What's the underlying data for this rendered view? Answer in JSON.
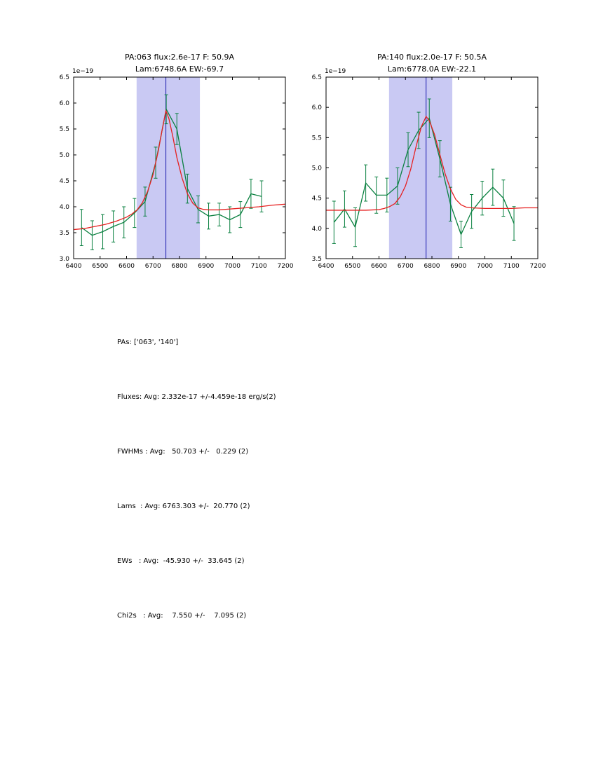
{
  "chart_data": [
    {
      "type": "line",
      "title": "PA:063 flux:2.6e-17 F: 50.9A",
      "subtitle": "Lam:6748.6A EW:-69.7",
      "offset_text": "1e−19",
      "xlim": [
        6400,
        7200
      ],
      "ylim": [
        3.0,
        6.5
      ],
      "xticks": [
        "6400",
        "6500",
        "6600",
        "6700",
        "6800",
        "6900",
        "7000",
        "7100",
        "7200"
      ],
      "yticks": [
        "3.0",
        "3.5",
        "4.0",
        "4.5",
        "5.0",
        "5.5",
        "6.0",
        "6.5"
      ],
      "band": {
        "x0": 6638,
        "x1": 6877,
        "color": "#c9c9f3"
      },
      "vline": {
        "x": 6748.6,
        "color": "#1a1aae"
      },
      "series": [
        {
          "name": "spectrum",
          "color": "#0a8040",
          "x": [
            6430,
            6470,
            6510,
            6550,
            6590,
            6630,
            6670,
            6710,
            6750,
            6790,
            6830,
            6870,
            6910,
            6950,
            6990,
            7030,
            7070,
            7110
          ],
          "y": [
            3.6,
            3.45,
            3.52,
            3.62,
            3.7,
            3.88,
            4.1,
            4.85,
            5.88,
            5.5,
            4.35,
            3.95,
            3.82,
            3.85,
            3.75,
            3.85,
            4.25,
            4.2
          ],
          "yerr": [
            0.35,
            0.28,
            0.33,
            0.3,
            0.3,
            0.28,
            0.28,
            0.3,
            0.28,
            0.3,
            0.28,
            0.26,
            0.25,
            0.22,
            0.25,
            0.25,
            0.28,
            0.3
          ]
        },
        {
          "name": "gaussian-fit",
          "color": "#e62020",
          "x": [
            6400,
            6440,
            6480,
            6520,
            6560,
            6600,
            6620,
            6640,
            6660,
            6680,
            6700,
            6720,
            6735,
            6748.6,
            6760,
            6775,
            6790,
            6810,
            6830,
            6850,
            6870,
            6890,
            6910,
            6950,
            7000,
            7050,
            7100,
            7150,
            7200
          ],
          "y": [
            3.56,
            3.58,
            3.62,
            3.66,
            3.72,
            3.8,
            3.86,
            3.94,
            4.08,
            4.3,
            4.62,
            5.08,
            5.5,
            5.85,
            5.7,
            5.35,
            4.95,
            4.55,
            4.25,
            4.07,
            3.98,
            3.95,
            3.94,
            3.94,
            3.96,
            3.98,
            4.0,
            4.03,
            4.05
          ]
        }
      ]
    },
    {
      "type": "line",
      "title": "PA:140 flux:2.0e-17 F: 50.5A",
      "subtitle": "Lam:6778.0A EW:-22.1",
      "offset_text": "1e−19",
      "xlim": [
        6400,
        7200
      ],
      "ylim": [
        3.5,
        6.5
      ],
      "xticks": [
        "6400",
        "6500",
        "6600",
        "6700",
        "6800",
        "6900",
        "7000",
        "7100",
        "7200"
      ],
      "yticks": [
        "3.5",
        "4.0",
        "4.5",
        "5.0",
        "5.5",
        "6.0",
        "6.5"
      ],
      "band": {
        "x0": 6638,
        "x1": 6877,
        "color": "#c9c9f3"
      },
      "vline": {
        "x": 6778.0,
        "color": "#1a1aae"
      },
      "series": [
        {
          "name": "spectrum",
          "color": "#0a8040",
          "x": [
            6430,
            6470,
            6510,
            6550,
            6590,
            6630,
            6670,
            6710,
            6750,
            6790,
            6830,
            6870,
            6910,
            6950,
            6990,
            7030,
            7070,
            7110
          ],
          "y": [
            4.1,
            4.32,
            4.02,
            4.75,
            4.55,
            4.55,
            4.7,
            5.3,
            5.62,
            5.82,
            5.15,
            4.4,
            3.9,
            4.28,
            4.5,
            4.68,
            4.5,
            4.08
          ],
          "yerr": [
            0.35,
            0.3,
            0.32,
            0.3,
            0.3,
            0.28,
            0.3,
            0.28,
            0.3,
            0.32,
            0.3,
            0.28,
            0.22,
            0.28,
            0.28,
            0.3,
            0.3,
            0.28
          ]
        },
        {
          "name": "gaussian-fit",
          "color": "#e62020",
          "x": [
            6400,
            6450,
            6500,
            6550,
            6600,
            6620,
            6640,
            6660,
            6680,
            6700,
            6720,
            6740,
            6760,
            6778,
            6790,
            6810,
            6830,
            6850,
            6870,
            6890,
            6910,
            6930,
            6950,
            7000,
            7050,
            7100,
            7150,
            7200
          ],
          "y": [
            4.3,
            4.3,
            4.3,
            4.3,
            4.31,
            4.33,
            4.36,
            4.41,
            4.52,
            4.7,
            4.98,
            5.35,
            5.68,
            5.85,
            5.78,
            5.55,
            5.22,
            4.9,
            4.65,
            4.48,
            4.39,
            4.35,
            4.34,
            4.33,
            4.33,
            4.33,
            4.34,
            4.34
          ]
        }
      ]
    }
  ],
  "stats": {
    "lines": [
      "PAs: ['063', '140']",
      "Fluxes: Avg: 2.332e-17 +/-4.459e-18 erg/s(2)",
      "FWHMs : Avg:   50.703 +/-   0.229 (2)",
      "Lams  : Avg: 6763.303 +/-  20.770 (2)",
      "EWs   : Avg:  -45.930 +/-  33.645 (2)",
      "Chi2s   : Avg:    7.550 +/-    7.095 (2)"
    ]
  }
}
